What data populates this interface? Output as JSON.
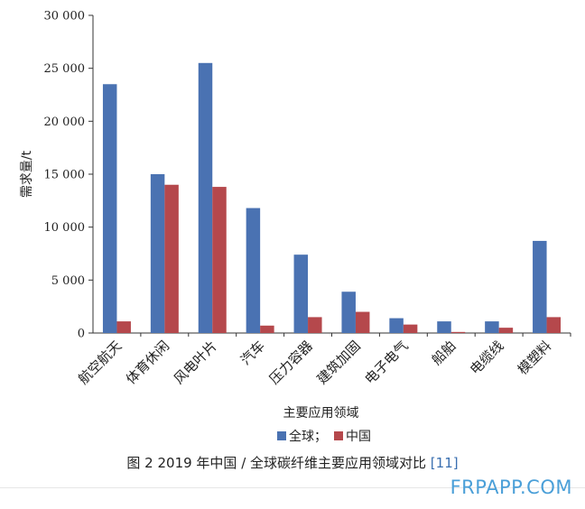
{
  "chart_data": {
    "type": "bar",
    "ylabel": "需求量/t",
    "xlabel": "主要应用领域",
    "ylim": [
      0,
      30000
    ],
    "yticks": [
      0,
      5000,
      10000,
      15000,
      20000,
      25000,
      30000
    ],
    "ytick_labels": [
      "0",
      "5 000",
      "10 000",
      "15 000",
      "20 000",
      "25 000",
      "30 000"
    ],
    "categories": [
      "航空航天",
      "体育休闲",
      "风电叶片",
      "汽车",
      "压力容器",
      "建筑加固",
      "电子电气",
      "船舶",
      "电缆线",
      "模塑料"
    ],
    "series": [
      {
        "name": "全球",
        "color": "#4a72b2",
        "values": [
          23500,
          15000,
          25500,
          11800,
          7400,
          3900,
          1400,
          1100,
          1100,
          8700
        ]
      },
      {
        "name": "中国",
        "color": "#b5484c",
        "values": [
          1100,
          14000,
          13800,
          700,
          1500,
          2000,
          800,
          100,
          500,
          1500
        ]
      }
    ],
    "legend": {
      "position": "bottom-center",
      "labels": [
        "全球；",
        "中国"
      ]
    },
    "grid": false
  },
  "caption": {
    "prefix": "图 2   2019 年中国 / 全球碳纤维主要应用领域对比 ",
    "ref": "[11]"
  },
  "watermark": "FRPAPP.COM"
}
